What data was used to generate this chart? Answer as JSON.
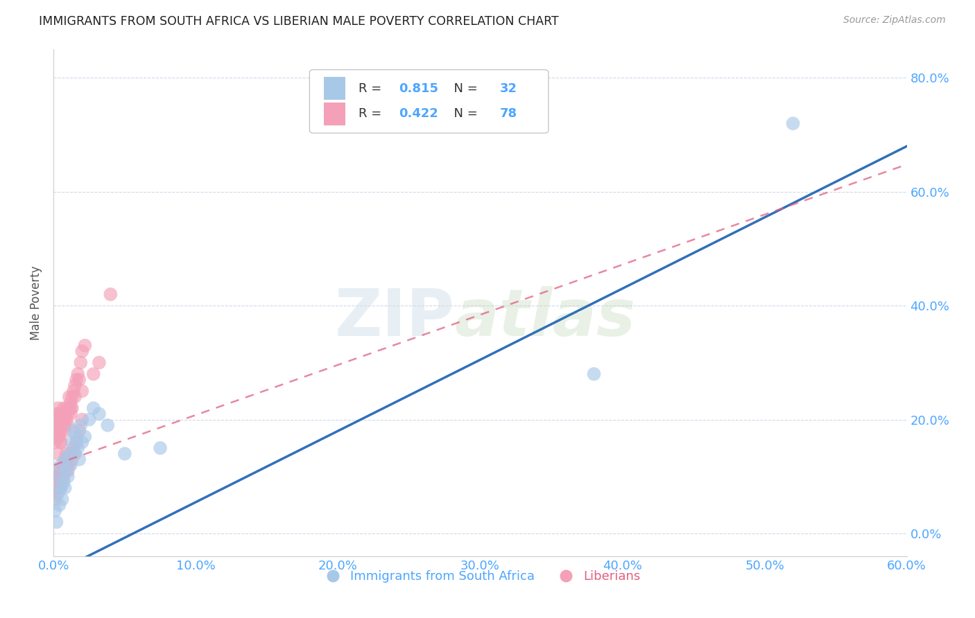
{
  "title": "IMMIGRANTS FROM SOUTH AFRICA VS LIBERIAN MALE POVERTY CORRELATION CHART",
  "source": "Source: ZipAtlas.com",
  "ylabel_label": "Male Poverty",
  "legend_label_blue": "Immigrants from South Africa",
  "legend_label_pink": "Liberians",
  "R_blue": 0.815,
  "N_blue": 32,
  "R_pink": 0.422,
  "N_pink": 78,
  "color_blue": "#a8c8e8",
  "color_pink": "#f4a0b8",
  "color_blue_line": "#3070b8",
  "color_pink_line": "#e06080",
  "color_axis_text": "#4da6ff",
  "watermark_zip": "ZIP",
  "watermark_atlas": "atlas",
  "xlim": [
    0,
    0.6
  ],
  "ylim": [
    -0.05,
    0.85
  ],
  "blue_scatter_x": [
    0.001,
    0.002,
    0.003,
    0.003,
    0.004,
    0.005,
    0.005,
    0.006,
    0.007,
    0.008,
    0.008,
    0.009,
    0.01,
    0.011,
    0.012,
    0.013,
    0.014,
    0.015,
    0.016,
    0.017,
    0.018,
    0.019,
    0.02,
    0.022,
    0.025,
    0.028,
    0.032,
    0.038,
    0.05,
    0.075,
    0.38,
    0.52
  ],
  "blue_scatter_y": [
    0.04,
    0.02,
    0.07,
    0.1,
    0.05,
    0.08,
    0.12,
    0.06,
    0.09,
    0.08,
    0.13,
    0.11,
    0.1,
    0.14,
    0.12,
    0.16,
    0.18,
    0.14,
    0.17,
    0.15,
    0.13,
    0.19,
    0.16,
    0.17,
    0.2,
    0.22,
    0.21,
    0.19,
    0.14,
    0.15,
    0.28,
    0.72
  ],
  "pink_scatter_x": [
    0.001,
    0.001,
    0.001,
    0.002,
    0.002,
    0.002,
    0.003,
    0.003,
    0.003,
    0.004,
    0.004,
    0.004,
    0.005,
    0.005,
    0.005,
    0.006,
    0.006,
    0.007,
    0.007,
    0.008,
    0.008,
    0.009,
    0.009,
    0.01,
    0.01,
    0.011,
    0.011,
    0.012,
    0.012,
    0.013,
    0.013,
    0.014,
    0.015,
    0.015,
    0.016,
    0.017,
    0.018,
    0.019,
    0.02,
    0.022,
    0.001,
    0.001,
    0.001,
    0.002,
    0.002,
    0.002,
    0.003,
    0.003,
    0.004,
    0.004,
    0.005,
    0.005,
    0.006,
    0.006,
    0.007,
    0.007,
    0.008,
    0.008,
    0.009,
    0.009,
    0.01,
    0.01,
    0.011,
    0.012,
    0.013,
    0.014,
    0.015,
    0.016,
    0.018,
    0.02,
    0.003,
    0.005,
    0.008,
    0.012,
    0.02,
    0.028,
    0.032,
    0.04
  ],
  "pink_scatter_y": [
    0.16,
    0.18,
    0.2,
    0.17,
    0.19,
    0.21,
    0.18,
    0.2,
    0.22,
    0.17,
    0.19,
    0.21,
    0.16,
    0.18,
    0.2,
    0.19,
    0.21,
    0.2,
    0.22,
    0.19,
    0.21,
    0.2,
    0.22,
    0.19,
    0.21,
    0.22,
    0.24,
    0.21,
    0.23,
    0.22,
    0.24,
    0.25,
    0.24,
    0.26,
    0.27,
    0.28,
    0.27,
    0.3,
    0.32,
    0.33,
    0.06,
    0.08,
    0.1,
    0.07,
    0.09,
    0.11,
    0.08,
    0.1,
    0.09,
    0.11,
    0.08,
    0.1,
    0.09,
    0.11,
    0.1,
    0.12,
    0.11,
    0.13,
    0.12,
    0.14,
    0.11,
    0.13,
    0.12,
    0.14,
    0.13,
    0.15,
    0.14,
    0.16,
    0.18,
    0.2,
    0.14,
    0.16,
    0.18,
    0.22,
    0.25,
    0.28,
    0.3,
    0.42
  ]
}
